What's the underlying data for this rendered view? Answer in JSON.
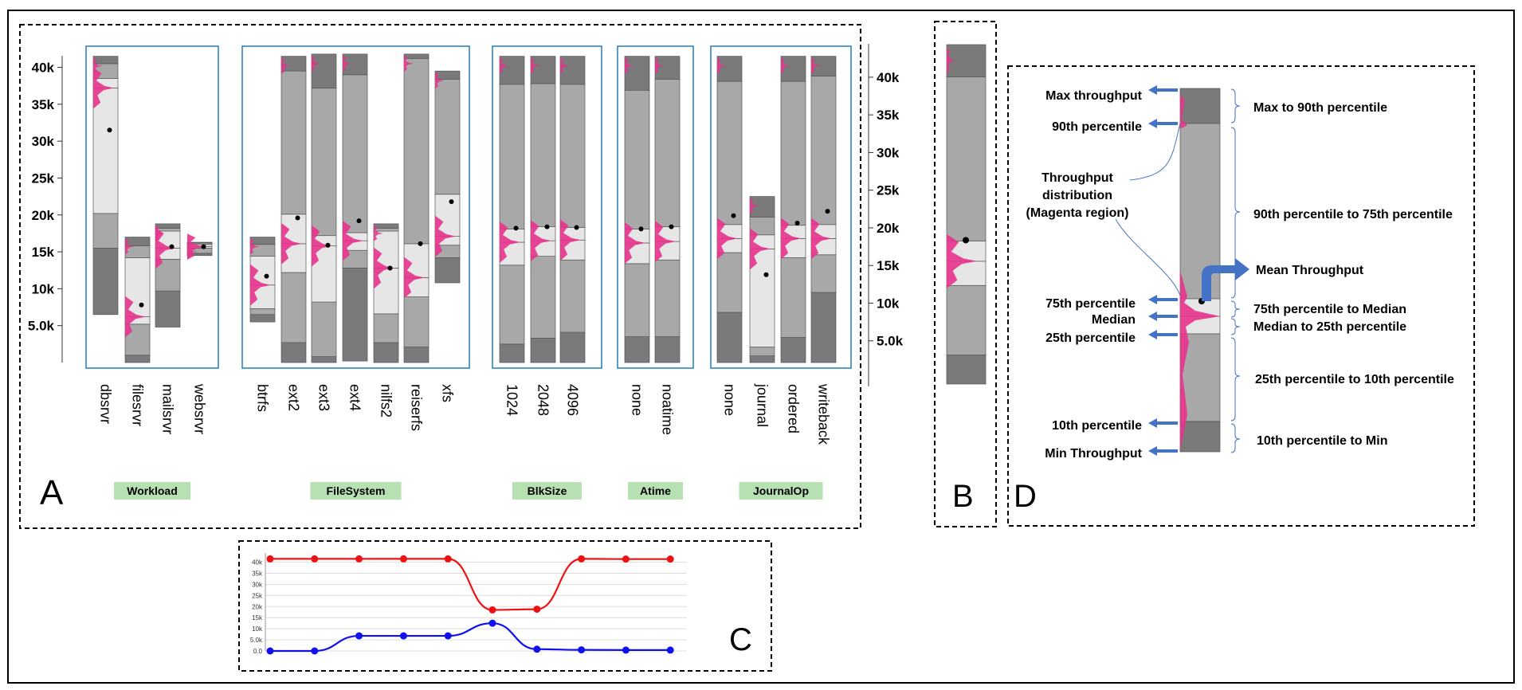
{
  "panels": {
    "A": {
      "label": "A",
      "y_ticks": [
        "5.0k",
        "10k",
        "15k",
        "20k",
        "25k",
        "30k",
        "35k",
        "40k"
      ],
      "groups": [
        {
          "label": "Workload",
          "bars": [
            {
              "name": "dbsrvr",
              "min": 6500,
              "p10": 15500,
              "p25": 20200,
              "median": 37200,
              "p75": 38500,
              "p90": 40500,
              "max": 41500,
              "mean": 31500
            },
            {
              "name": "filesrvr",
              "min": 0,
              "p10": 1000,
              "p25": 5200,
              "median": 6200,
              "p75": 14200,
              "p90": 15800,
              "max": 17000,
              "mean": 7800
            },
            {
              "name": "mailsrvr",
              "min": 4800,
              "p10": 9700,
              "p25": 14000,
              "median": 15500,
              "p75": 17800,
              "p90": 18200,
              "max": 18800,
              "mean": 15700
            },
            {
              "name": "websrvr",
              "min": 14500,
              "p10": 14800,
              "p25": 15500,
              "median": 15700,
              "p75": 16000,
              "p90": 16200,
              "max": 16300,
              "mean": 15700
            }
          ]
        },
        {
          "label": "FileSystem",
          "bars": [
            {
              "name": "btrfs",
              "min": 5500,
              "p10": 6500,
              "p25": 7300,
              "median": 10500,
              "p75": 14400,
              "p90": 16000,
              "max": 17000,
              "mean": 11700
            },
            {
              "name": "ext2",
              "min": 0,
              "p10": 2700,
              "p25": 12200,
              "median": 16100,
              "p75": 20100,
              "p90": 39500,
              "max": 41500,
              "mean": 19600
            },
            {
              "name": "ext3",
              "min": 0,
              "p10": 800,
              "p25": 8200,
              "median": 15800,
              "p75": 17200,
              "p90": 37200,
              "max": 41800,
              "mean": 15900
            },
            {
              "name": "ext4",
              "min": 200,
              "p10": 12800,
              "p25": 15200,
              "median": 16500,
              "p75": 17600,
              "p90": 39000,
              "max": 41800,
              "mean": 19200
            },
            {
              "name": "nilfs2",
              "min": 0,
              "p10": 2700,
              "p25": 6600,
              "median": 12800,
              "p75": 17800,
              "p90": 18200,
              "max": 18800,
              "mean": 12800
            },
            {
              "name": "reiserfs",
              "min": 0,
              "p10": 2100,
              "p25": 8900,
              "median": 11500,
              "p75": 16100,
              "p90": 41200,
              "max": 41800,
              "mean": 16100
            },
            {
              "name": "xfs",
              "min": 10800,
              "p10": 14200,
              "p25": 15900,
              "median": 17100,
              "p75": 22800,
              "p90": 38400,
              "max": 39500,
              "mean": 21800
            }
          ]
        },
        {
          "label": "BlkSize",
          "bars": [
            {
              "name": "1024",
              "min": 0,
              "p10": 2500,
              "p25": 13200,
              "median": 16300,
              "p75": 18100,
              "p90": 37700,
              "max": 41500,
              "mean": 18200
            },
            {
              "name": "2048",
              "min": 0,
              "p10": 3300,
              "p25": 14400,
              "median": 16500,
              "p75": 18400,
              "p90": 37800,
              "max": 41500,
              "mean": 18400
            },
            {
              "name": "4096",
              "min": 0,
              "p10": 4100,
              "p25": 13900,
              "median": 16600,
              "p75": 18300,
              "p90": 37700,
              "max": 41500,
              "mean": 18300
            }
          ]
        },
        {
          "label": "Atime",
          "bars": [
            {
              "name": "none",
              "min": 0,
              "p10": 3500,
              "p25": 13400,
              "median": 16200,
              "p75": 18100,
              "p90": 36900,
              "max": 41500,
              "mean": 18100
            },
            {
              "name": "noatime",
              "min": 0,
              "p10": 3500,
              "p25": 13900,
              "median": 16400,
              "p75": 18400,
              "p90": 38400,
              "max": 41500,
              "mean": 18400
            }
          ]
        },
        {
          "label": "JournalOp",
          "bars": [
            {
              "name": "none",
              "min": 0,
              "p10": 6800,
              "p25": 14900,
              "median": 16800,
              "p75": 18700,
              "p90": 38100,
              "max": 41500,
              "mean": 19900
            },
            {
              "name": "journal",
              "min": 0,
              "p10": 900,
              "p25": 2100,
              "median": 15400,
              "p75": 17300,
              "p90": 19700,
              "max": 22500,
              "mean": 11900
            },
            {
              "name": "ordered",
              "min": 0,
              "p10": 3400,
              "p25": 14200,
              "median": 16800,
              "p75": 18600,
              "p90": 38100,
              "max": 41500,
              "mean": 18900
            },
            {
              "name": "writeback",
              "min": 0,
              "p10": 9500,
              "p25": 14600,
              "median": 16800,
              "p75": 18700,
              "p90": 38800,
              "max": 41500,
              "mean": 20500
            }
          ]
        }
      ]
    },
    "B": {
      "label": "B"
    },
    "C": {
      "label": "C",
      "y_ticks": [
        "0.0",
        "5.0k",
        "10k",
        "15k",
        "20k",
        "25k",
        "30k",
        "35k",
        "40k"
      ]
    },
    "D": {
      "label": "D",
      "left_labels": {
        "max": "Max throughput",
        "p90": "90th percentile",
        "dist": [
          "Throughput",
          "distribution",
          "(Magenta region)"
        ],
        "p75": "75th percentile",
        "median": "Median",
        "p25": "25th percentile",
        "p10": "10th percentile",
        "min": "Min Throughput"
      },
      "right_labels": {
        "r1": "Max to 90th percentile",
        "r2": "90th percentile to 75th percentile",
        "mean": "Mean Throughput",
        "r3": "75th percentile to Median",
        "r4": "Median to 25th percentile",
        "r5": "25th percentile to 10th percentile",
        "r6": "10th percentile to Min"
      }
    }
  },
  "colors": {
    "magenta": "#e8328c",
    "dark": "#7a7a7a",
    "mid": "#a8a8a8",
    "light": "#e6e6e6",
    "frame": "#1f7fbf",
    "tag": "#b7e1b2",
    "red": "#ee1111",
    "blue": "#1111ee",
    "arrow": "#4472c4"
  },
  "chart_data": [
    {
      "type": "box",
      "panel": "A",
      "categories": [
        "dbsrvr",
        "filesrvr",
        "mailsrvr",
        "websrvr",
        "btrfs",
        "ext2",
        "ext3",
        "ext4",
        "nilfs2",
        "reiserfs",
        "xfs",
        "1024",
        "2048",
        "4096",
        "none",
        "noatime",
        "none",
        "journal",
        "ordered",
        "writeback"
      ],
      "category_groups": [
        "Workload",
        "FileSystem",
        "BlkSize",
        "Atime",
        "JournalOp"
      ],
      "ylim": [
        0,
        42000
      ],
      "y_ticks": [
        "5.0k",
        "10k",
        "15k",
        "20k",
        "25k",
        "30k",
        "35k",
        "40k"
      ],
      "mean": [
        31500,
        7800,
        15700,
        15700,
        11700,
        19600,
        15900,
        19200,
        12800,
        16100,
        21800,
        18200,
        18400,
        18300,
        18100,
        18400,
        19900,
        11900,
        18900,
        20500
      ]
    },
    {
      "type": "box",
      "panel": "B",
      "ylim": [
        0,
        42000
      ],
      "min": 0,
      "p10": 3600,
      "p25": 12200,
      "median": 15200,
      "p75": 17700,
      "p90": 38000,
      "max": 42000,
      "mean": 17800
    },
    {
      "type": "line",
      "panel": "C",
      "x": [
        1,
        2,
        3,
        4,
        5,
        6,
        7,
        8,
        9,
        10
      ],
      "ylim": [
        0,
        42000
      ],
      "y_ticks": [
        "0.0",
        "5.0k",
        "10k",
        "15k",
        "20k",
        "25k",
        "30k",
        "35k",
        "40k"
      ],
      "series": [
        {
          "color": "red",
          "values": [
            41500,
            41500,
            41500,
            41500,
            41500,
            18500,
            18800,
            41500,
            41400,
            41400
          ]
        },
        {
          "color": "blue",
          "values": [
            0,
            0,
            6800,
            6800,
            6800,
            12500,
            800,
            500,
            400,
            400
          ]
        }
      ]
    }
  ]
}
